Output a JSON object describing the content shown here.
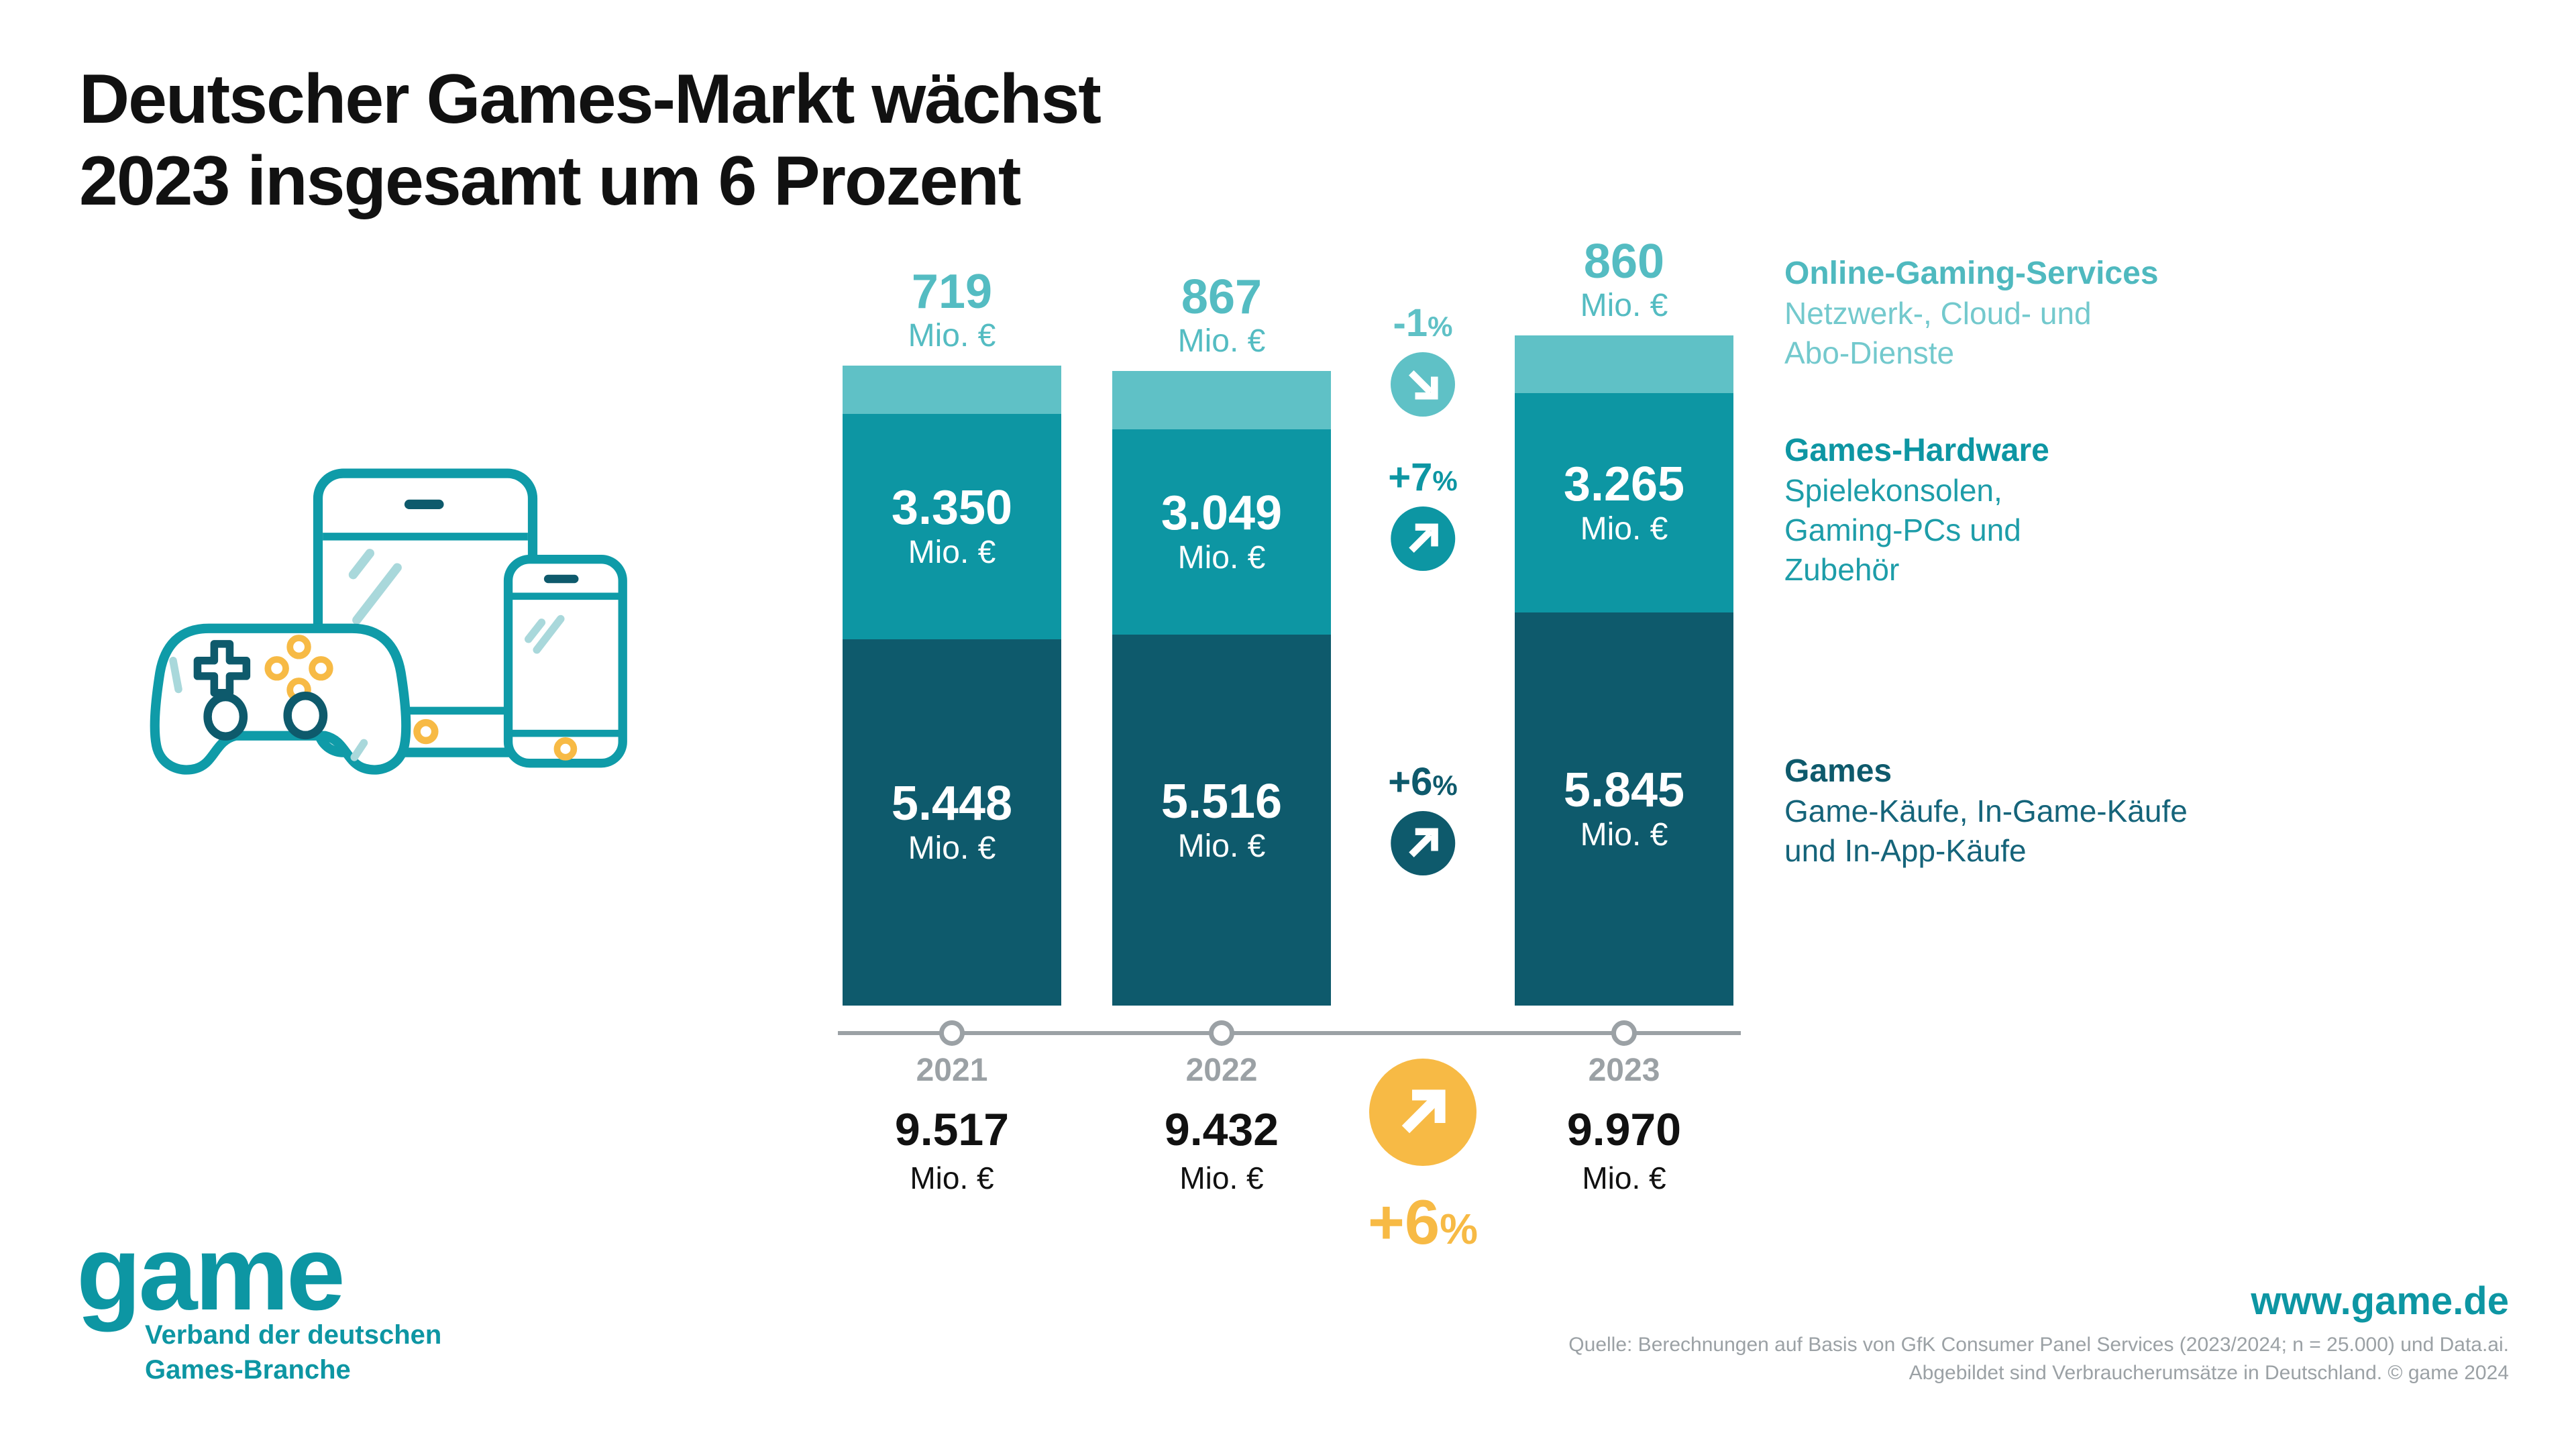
{
  "title": {
    "line1": "Deutscher Games-Markt wächst",
    "line2": "2023 insgesamt um 6 Prozent"
  },
  "colors": {
    "dark_teal": "#0E5A6C",
    "teal": "#0D96A3",
    "light_teal": "#5FC1C6",
    "yellow": "#F7BA45",
    "gray": "#9BA1A5"
  },
  "chart_data": {
    "type": "bar",
    "subtype": "stacked-bar",
    "unit": "Mio. €",
    "categories": [
      "2021",
      "2022",
      "2023"
    ],
    "series": [
      {
        "name": "Games",
        "color": "#0E5A6C",
        "values": [
          5448,
          5516,
          5845
        ],
        "value_labels": [
          "5.448",
          "5.516",
          "5.845"
        ]
      },
      {
        "name": "Games-Hardware",
        "color": "#0D96A3",
        "values": [
          3350,
          3049,
          3265
        ],
        "value_labels": [
          "3.350",
          "3.049",
          "3.265"
        ]
      },
      {
        "name": "Online-Gaming-Services",
        "color": "#5FC1C6",
        "values": [
          719,
          867,
          860
        ],
        "value_labels": [
          "719",
          "867",
          "860"
        ]
      }
    ],
    "totals": {
      "values": [
        9517,
        9432,
        9970
      ],
      "value_labels": [
        "9.517",
        "9.432",
        "9.970"
      ]
    },
    "changes_2022_2023": [
      {
        "series": "Online-Gaming-Services",
        "label": "-1",
        "suffix": "%",
        "direction": "down"
      },
      {
        "series": "Games-Hardware",
        "label": "+7",
        "suffix": "%",
        "direction": "up"
      },
      {
        "series": "Games",
        "label": "+6",
        "suffix": "%",
        "direction": "up"
      }
    ],
    "overall_change": {
      "label": "+6",
      "suffix": "%",
      "direction": "up"
    },
    "ylim": [
      0,
      9970
    ],
    "grid": false,
    "legend_position": "right"
  },
  "legend": [
    {
      "title": "Online-Gaming-Services",
      "desc_lines": [
        "Netzwerk-, Cloud- und",
        "Abo-Dienste"
      ],
      "color": "#5FC1C6"
    },
    {
      "title": "Games-Hardware",
      "desc_lines": [
        "Spielekonsolen,",
        "Gaming-PCs und",
        "Zubehör"
      ],
      "color": "#0D96A3"
    },
    {
      "title": "Games",
      "desc_lines": [
        "Game-Käufe, In-Game-Käufe",
        "und In-App-Käufe"
      ],
      "color": "#0E5A6C"
    }
  ],
  "footer": {
    "logo_word": "game",
    "logo_sub_lines": [
      "Verband der deutschen",
      "Games-Branche"
    ],
    "website": "www.game.de",
    "source_lines": [
      "Quelle: Berechnungen auf Basis von GfK Consumer Panel Services (2023/2024; n = 25.000) und Data.ai.",
      "Abgebildet sind Verbraucherumsätze in Deutschland. © game 2024"
    ]
  }
}
